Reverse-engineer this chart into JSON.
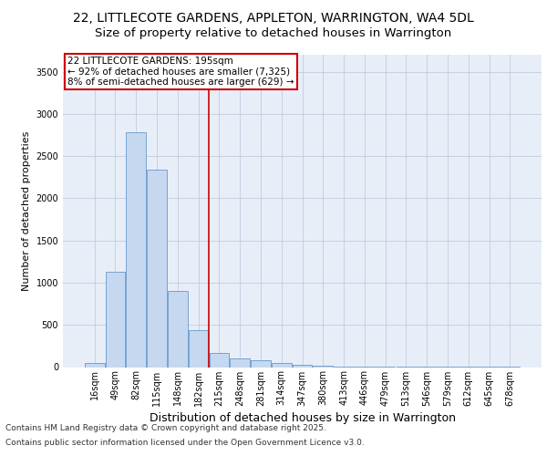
{
  "title_line1": "22, LITTLECOTE GARDENS, APPLETON, WARRINGTON, WA4 5DL",
  "title_line2": "Size of property relative to detached houses in Warrington",
  "xlabel": "Distribution of detached houses by size in Warrington",
  "ylabel": "Number of detached properties",
  "categories": [
    "16sqm",
    "49sqm",
    "82sqm",
    "115sqm",
    "148sqm",
    "182sqm",
    "215sqm",
    "248sqm",
    "281sqm",
    "314sqm",
    "347sqm",
    "380sqm",
    "413sqm",
    "446sqm",
    "479sqm",
    "513sqm",
    "546sqm",
    "579sqm",
    "612sqm",
    "645sqm",
    "678sqm"
  ],
  "values": [
    50,
    1130,
    2780,
    2340,
    900,
    440,
    170,
    100,
    80,
    50,
    30,
    20,
    10,
    5,
    5,
    3,
    2,
    2,
    2,
    2,
    2
  ],
  "bar_color": "#c5d8f0",
  "bar_edge_color": "#6699cc",
  "annotation_text": "22 LITTLECOTE GARDENS: 195sqm\n← 92% of detached houses are smaller (7,325)\n8% of semi-detached houses are larger (629) →",
  "vline_x": 5.5,
  "vline_color": "#cc0000",
  "ylim": [
    0,
    3700
  ],
  "yticks": [
    0,
    500,
    1000,
    1500,
    2000,
    2500,
    3000,
    3500
  ],
  "background_color": "#e8eef8",
  "grid_color": "#c0cce0",
  "footer_line1": "Contains HM Land Registry data © Crown copyright and database right 2025.",
  "footer_line2": "Contains public sector information licensed under the Open Government Licence v3.0.",
  "title1_fontsize": 10,
  "title2_fontsize": 9.5,
  "annot_fontsize": 7.5,
  "tick_fontsize": 7,
  "ylabel_fontsize": 8,
  "xlabel_fontsize": 9,
  "footer_fontsize": 6.5
}
